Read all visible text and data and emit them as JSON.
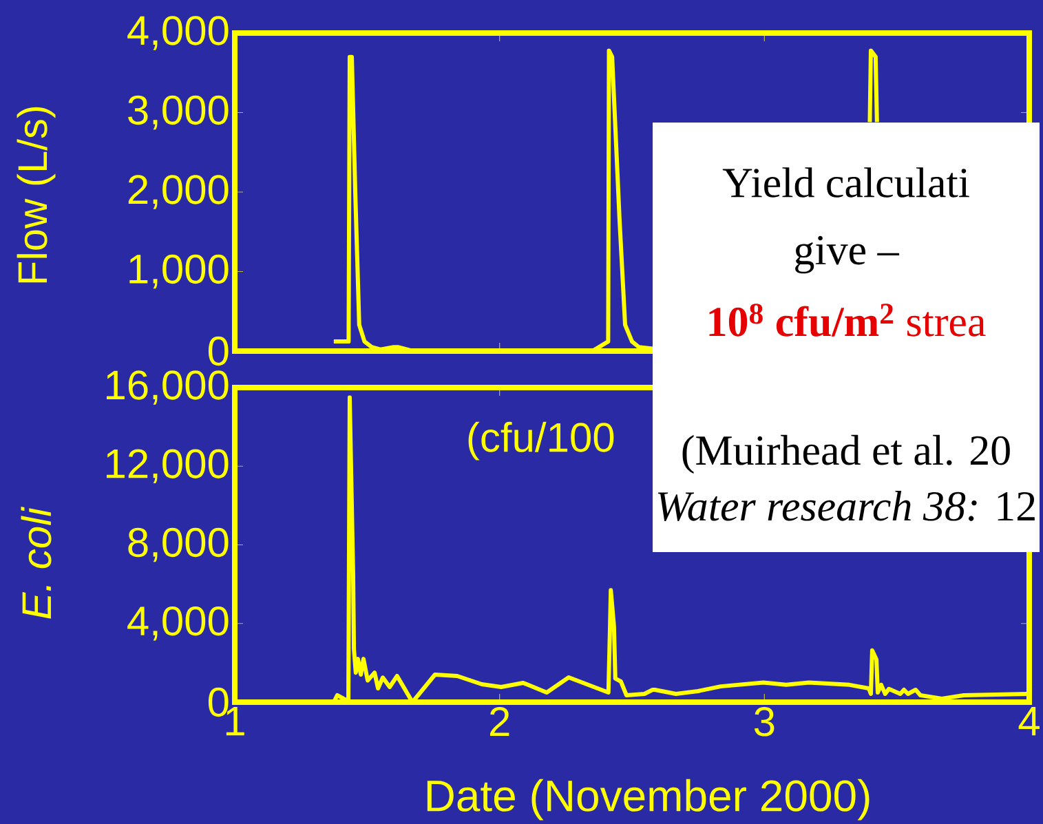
{
  "chart_data": [
    {
      "type": "line",
      "ylabel": "Flow  (L/s)",
      "xlim": [
        1,
        4
      ],
      "xticks": [
        1,
        2,
        3,
        4
      ],
      "ylim": [
        0,
        4000
      ],
      "yticks": [
        0,
        {
          "value": 1000,
          "label": "1,000"
        },
        {
          "value": 2000,
          "label": "2,000"
        },
        {
          "value": 3000,
          "label": "3,000"
        },
        {
          "value": 4000,
          "label": "4,000"
        }
      ],
      "tick_labels": "y",
      "grid": false,
      "series": [
        {
          "color": "#ffff00",
          "x": [
            1.374,
            1.43,
            1.434,
            1.442,
            1.455,
            1.47,
            1.49,
            1.517,
            1.55,
            1.6,
            1.616,
            1.673,
            2.35,
            2.41,
            2.413,
            2.425,
            2.453,
            2.474,
            2.5,
            2.526,
            2.578,
            3.0,
            3.398,
            3.402,
            3.42,
            3.425
          ],
          "values": [
            120,
            120,
            3700,
            3700,
            2000,
            330,
            120,
            50,
            20,
            50,
            50,
            0,
            0,
            120,
            3780,
            3700,
            1650,
            330,
            120,
            50,
            30,
            null,
            2880,
            3780,
            3700,
            2880
          ]
        }
      ],
      "annotations": [
        "Yield calculati",
        "give –",
        "**10$^{8}$ cfu/m$^{2}$** strea",
        "(Muirhead et al. 20",
        "*Water research 38:* 12"
      ]
    },
    {
      "type": "line",
      "ylabel": "E. coli",
      "xlabel": "Date (November 2000)",
      "xlim": [
        1,
        4
      ],
      "xticks": [
        1,
        2,
        3,
        4
      ],
      "ylim": [
        0,
        16000
      ],
      "yticks": [
        0,
        {
          "value": 4000,
          "label": "4,000"
        },
        {
          "value": 8000,
          "label": "8,000"
        },
        {
          "value": 12000,
          "label": "12,000"
        },
        {
          "value": 16000,
          "label": "16,000"
        }
      ],
      "grid": false,
      "series": [
        {
          "color": "#ffff00",
          "x": [
            1.374,
            1.387,
            1.429,
            1.434,
            1.447,
            1.45,
            1.457,
            1.465,
            1.476,
            1.486,
            1.502,
            1.528,
            1.541,
            1.559,
            1.585,
            1.613,
            1.671,
            1.756,
            1.84,
            1.933,
            2.006,
            2.089,
            2.178,
            2.261,
            2.411,
            2.417,
            2.42,
            2.432,
            2.437,
            2.458,
            2.479,
            2.547,
            2.578,
            2.586,
            2.666,
            2.749,
            2.835,
            2.996,
            3.082,
            3.168,
            3.321,
            3.394,
            3.402,
            3.407,
            3.423,
            3.428,
            3.441,
            3.456,
            3.47,
            3.513,
            3.527,
            3.542,
            3.571,
            3.589,
            3.67,
            3.753,
            3.995
          ],
          "values": [
            0,
            350,
            50,
            15500,
            6500,
            2700,
            1500,
            2200,
            1400,
            2200,
            1100,
            1500,
            700,
            1250,
            770,
            1330,
            0,
            1400,
            1330,
            910,
            770,
            980,
            490,
            1260,
            490,
            3850,
            5700,
            3850,
            1200,
            1050,
            350,
            420,
            630,
            630,
            420,
            560,
            800,
            1000,
            880,
            1000,
            880,
            700,
            420,
            2630,
            2170,
            490,
            880,
            420,
            670,
            420,
            630,
            420,
            630,
            350,
            180,
            350,
            420
          ]
        }
      ],
      "annotations": [
        "(cfu/100"
      ]
    }
  ]
}
